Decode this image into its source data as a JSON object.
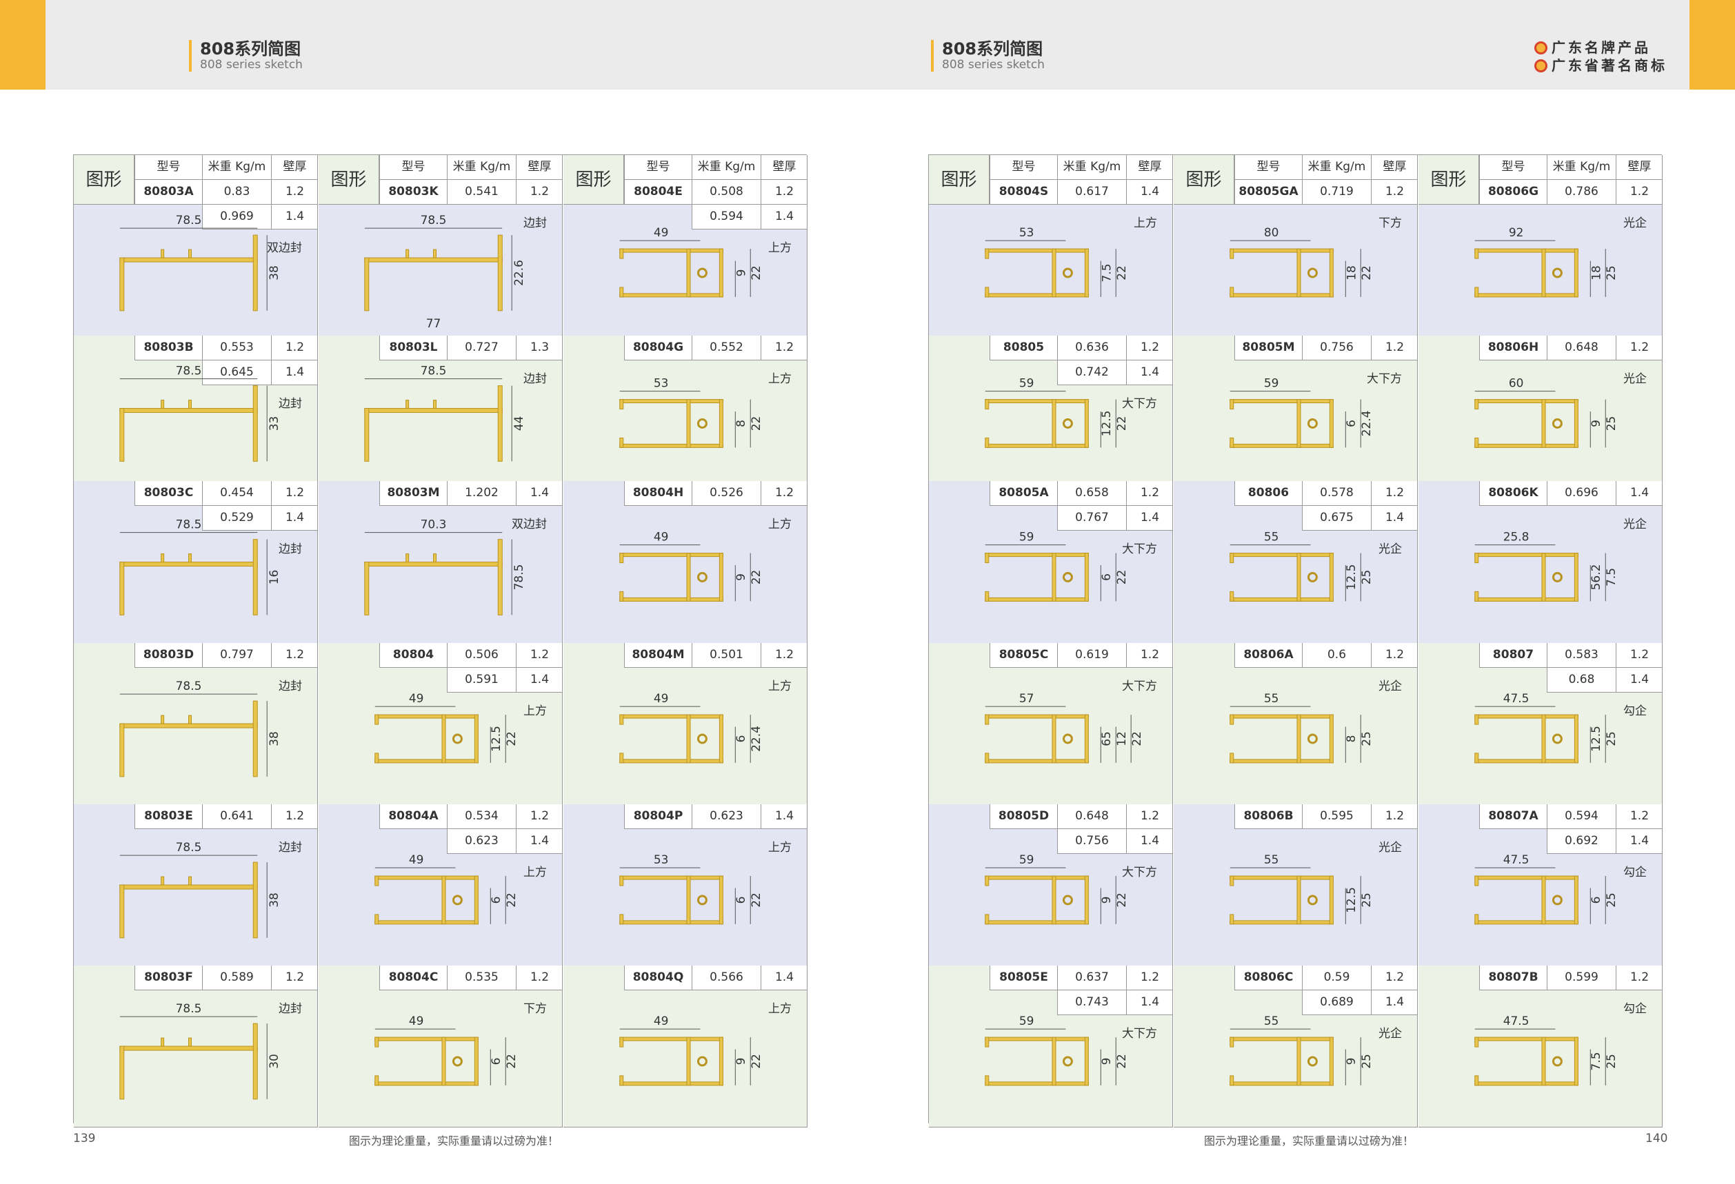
{
  "left": {
    "title_cn": "808系列简图",
    "title_en": "808 series sketch",
    "page_number": "139",
    "footnote": "图示为理论重量，实际重量请以过磅为准！"
  },
  "right": {
    "title_cn": "808系列简图",
    "title_en": "808 series sketch",
    "page_number": "140",
    "footnote": "图示为理论重量，实际重量请以过磅为准！",
    "brand": [
      "广东名牌产品",
      "广东省著名商标"
    ]
  },
  "header_labels": {
    "figure": "图形",
    "model": "型号",
    "weight": "米重 Kg/m",
    "thickness": "壁厚"
  },
  "left_columns": [
    [
      {
        "model": "80803A",
        "rows": [
          [
            "0.83",
            "1.2"
          ],
          [
            "0.969",
            "1.4"
          ]
        ],
        "type": "双边封",
        "dims": [
          "78.5",
          "38"
        ]
      },
      {
        "model": "80803B",
        "rows": [
          [
            "0.553",
            "1.2"
          ],
          [
            "0.645",
            "1.4"
          ]
        ],
        "type": "边封",
        "dims": [
          "78.5",
          "33"
        ]
      },
      {
        "model": "80803C",
        "rows": [
          [
            "0.454",
            "1.2"
          ],
          [
            "0.529",
            "1.4"
          ]
        ],
        "type": "边封",
        "dims": [
          "78.5",
          "16"
        ]
      },
      {
        "model": "80803D",
        "rows": [
          [
            "0.797",
            "1.2"
          ]
        ],
        "type": "边封",
        "dims": [
          "78.5",
          "38"
        ]
      },
      {
        "model": "80803E",
        "rows": [
          [
            "0.641",
            "1.2"
          ]
        ],
        "type": "边封",
        "dims": [
          "78.5",
          "38"
        ]
      },
      {
        "model": "80803F",
        "rows": [
          [
            "0.589",
            "1.2"
          ]
        ],
        "type": "边封",
        "dims": [
          "78.5",
          "30"
        ]
      }
    ],
    [
      {
        "model": "80803K",
        "rows": [
          [
            "0.541",
            "1.2"
          ]
        ],
        "type": "边封",
        "dims": [
          "78.5",
          "22.6",
          "77"
        ]
      },
      {
        "model": "80803L",
        "rows": [
          [
            "0.727",
            "1.3"
          ]
        ],
        "type": "边封",
        "dims": [
          "78.5",
          "44"
        ]
      },
      {
        "model": "80803M",
        "rows": [
          [
            "1.202",
            "1.4"
          ]
        ],
        "type": "双边封",
        "dims": [
          "70.3",
          "78.5"
        ]
      },
      {
        "model": "80804",
        "rows": [
          [
            "0.506",
            "1.2"
          ],
          [
            "0.591",
            "1.4"
          ]
        ],
        "type": "上方",
        "dims": [
          "49",
          "12.5",
          "22"
        ]
      },
      {
        "model": "80804A",
        "rows": [
          [
            "0.534",
            "1.2"
          ],
          [
            "0.623",
            "1.4"
          ]
        ],
        "type": "上方",
        "dims": [
          "49",
          "6",
          "22"
        ]
      },
      {
        "model": "80804C",
        "rows": [
          [
            "0.535",
            "1.2"
          ]
        ],
        "type": "下方",
        "dims": [
          "49",
          "6",
          "22"
        ]
      }
    ],
    [
      {
        "model": "80804E",
        "rows": [
          [
            "0.508",
            "1.2"
          ],
          [
            "0.594",
            "1.4"
          ]
        ],
        "type": "上方",
        "dims": [
          "49",
          "9",
          "22"
        ]
      },
      {
        "model": "80804G",
        "rows": [
          [
            "0.552",
            "1.2"
          ]
        ],
        "type": "上方",
        "dims": [
          "53",
          "8",
          "22"
        ]
      },
      {
        "model": "80804H",
        "rows": [
          [
            "0.526",
            "1.2"
          ]
        ],
        "type": "上方",
        "dims": [
          "49",
          "9",
          "22"
        ]
      },
      {
        "model": "80804M",
        "rows": [
          [
            "0.501",
            "1.2"
          ]
        ],
        "type": "上方",
        "dims": [
          "49",
          "6",
          "22.4"
        ]
      },
      {
        "model": "80804P",
        "rows": [
          [
            "0.623",
            "1.4"
          ]
        ],
        "type": "上方",
        "dims": [
          "53",
          "6",
          "22"
        ]
      },
      {
        "model": "80804Q",
        "rows": [
          [
            "0.566",
            "1.4"
          ]
        ],
        "type": "上方",
        "dims": [
          "49",
          "9",
          "22"
        ]
      }
    ]
  ],
  "right_columns": [
    [
      {
        "model": "80804S",
        "rows": [
          [
            "0.617",
            "1.4"
          ]
        ],
        "type": "上方",
        "dims": [
          "53",
          "7.5",
          "22"
        ]
      },
      {
        "model": "80805",
        "rows": [
          [
            "0.636",
            "1.2"
          ],
          [
            "0.742",
            "1.4"
          ]
        ],
        "type": "大下方",
        "dims": [
          "59",
          "12.5",
          "22"
        ]
      },
      {
        "model": "80805A",
        "rows": [
          [
            "0.658",
            "1.2"
          ],
          [
            "0.767",
            "1.4"
          ]
        ],
        "type": "大下方",
        "dims": [
          "59",
          "6",
          "22"
        ]
      },
      {
        "model": "80805C",
        "rows": [
          [
            "0.619",
            "1.2"
          ]
        ],
        "type": "大下方",
        "dims": [
          "57",
          "65",
          "12",
          "22"
        ]
      },
      {
        "model": "80805D",
        "rows": [
          [
            "0.648",
            "1.2"
          ],
          [
            "0.756",
            "1.4"
          ]
        ],
        "type": "大下方",
        "dims": [
          "59",
          "9",
          "22"
        ]
      },
      {
        "model": "80805E",
        "rows": [
          [
            "0.637",
            "1.2"
          ],
          [
            "0.743",
            "1.4"
          ]
        ],
        "type": "大下方",
        "dims": [
          "59",
          "9",
          "22"
        ]
      }
    ],
    [
      {
        "model": "80805GA",
        "rows": [
          [
            "0.719",
            "1.2"
          ]
        ],
        "type": "下方",
        "dims": [
          "80",
          "18",
          "22"
        ]
      },
      {
        "model": "80805M",
        "rows": [
          [
            "0.756",
            "1.2"
          ]
        ],
        "type": "大下方",
        "dims": [
          "59",
          "6",
          "22.4"
        ]
      },
      {
        "model": "80806",
        "rows": [
          [
            "0.578",
            "1.2"
          ],
          [
            "0.675",
            "1.4"
          ]
        ],
        "type": "光企",
        "dims": [
          "55",
          "12.5",
          "25"
        ]
      },
      {
        "model": "80806A",
        "rows": [
          [
            "0.6",
            "1.2"
          ]
        ],
        "type": "光企",
        "dims": [
          "55",
          "8",
          "25"
        ]
      },
      {
        "model": "80806B",
        "rows": [
          [
            "0.595",
            "1.2"
          ]
        ],
        "type": "光企",
        "dims": [
          "55",
          "12.5",
          "25"
        ]
      },
      {
        "model": "80806C",
        "rows": [
          [
            "0.59",
            "1.2"
          ],
          [
            "0.689",
            "1.4"
          ]
        ],
        "type": "光企",
        "dims": [
          "55",
          "9",
          "25"
        ]
      }
    ],
    [
      {
        "model": "80806G",
        "rows": [
          [
            "0.786",
            "1.2"
          ]
        ],
        "type": "光企",
        "dims": [
          "92",
          "18",
          "25"
        ]
      },
      {
        "model": "80806H",
        "rows": [
          [
            "0.648",
            "1.2"
          ]
        ],
        "type": "光企",
        "dims": [
          "60",
          "9",
          "25"
        ]
      },
      {
        "model": "80806K",
        "rows": [
          [
            "0.696",
            "1.4"
          ]
        ],
        "type": "光企",
        "dims": [
          "25.8",
          "56.2",
          "7.5"
        ]
      },
      {
        "model": "80807",
        "rows": [
          [
            "0.583",
            "1.2"
          ],
          [
            "0.68",
            "1.4"
          ]
        ],
        "type": "勾企",
        "dims": [
          "47.5",
          "12.5",
          "25"
        ]
      },
      {
        "model": "80807A",
        "rows": [
          [
            "0.594",
            "1.2"
          ],
          [
            "0.692",
            "1.4"
          ]
        ],
        "type": "勾企",
        "dims": [
          "47.5",
          "6",
          "25"
        ]
      },
      {
        "model": "80807B",
        "rows": [
          [
            "0.599",
            "1.2"
          ]
        ],
        "type": "勾企",
        "dims": [
          "47.5",
          "7.5",
          "25"
        ]
      }
    ]
  ],
  "colors": {
    "accent": "#f7b631",
    "profile": "#e8c44a",
    "cell_green": "#ecf3e6",
    "cell_blue": "#e3e5f3",
    "header_band": "#ebebeb"
  }
}
